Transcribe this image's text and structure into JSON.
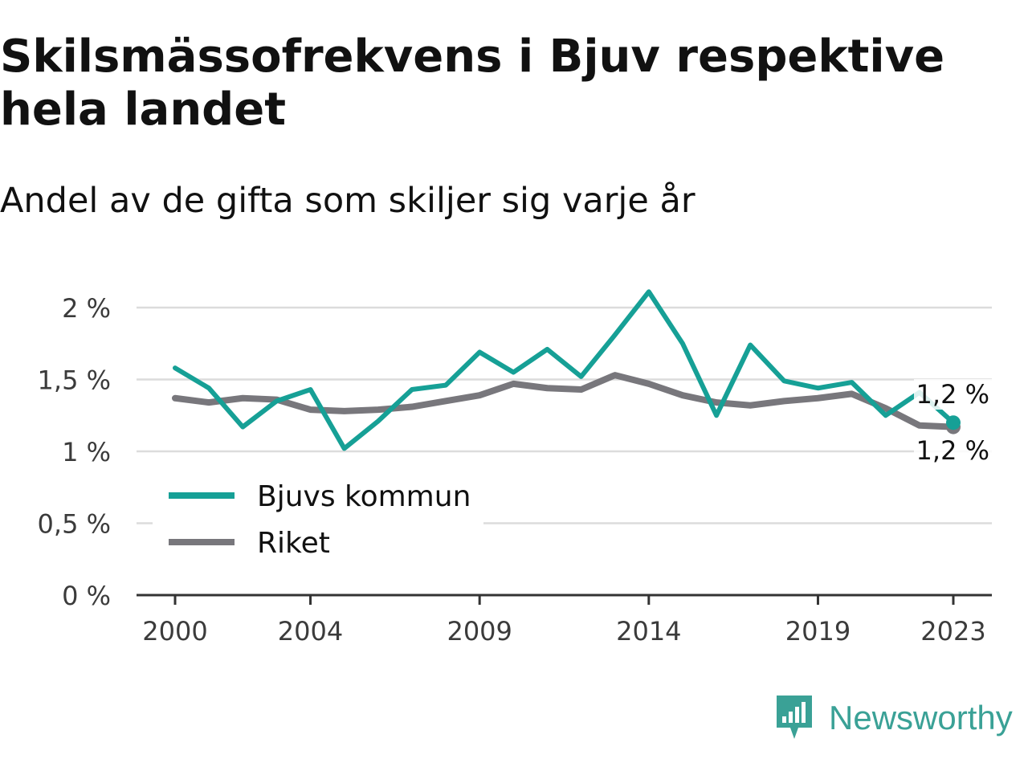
{
  "header": {
    "title": "Skilsmässofrekvens i Bjuv respektive hela landet",
    "subtitle": "Andel av de gifta som skiljer sig varje år"
  },
  "brand": {
    "name": "Newsworthy",
    "icon": "newsworthy-logo-icon",
    "color": "#3aa196"
  },
  "chart_data": {
    "type": "line",
    "title": "Skilsmässofrekvens i Bjuv respektive hela landet",
    "subtitle": "Andel av de gifta som skiljer sig varje år",
    "xlabel": "",
    "ylabel": "",
    "x": [
      2000,
      2001,
      2002,
      2003,
      2004,
      2005,
      2006,
      2007,
      2008,
      2009,
      2010,
      2011,
      2012,
      2013,
      2014,
      2015,
      2016,
      2017,
      2018,
      2019,
      2020,
      2021,
      2022,
      2023
    ],
    "x_ticks": [
      2000,
      2004,
      2009,
      2014,
      2019,
      2023
    ],
    "x_tick_labels": [
      "2000",
      "2004",
      "2009",
      "2014",
      "2019",
      "2023"
    ],
    "ylim": [
      0,
      2.1
    ],
    "y_ticks": [
      0,
      0.5,
      1,
      1.5,
      2
    ],
    "y_tick_labels": [
      "0 %",
      "0,5 %",
      "1 %",
      "1,5 %",
      "2 %"
    ],
    "grid": true,
    "legend_position": "bottom-left",
    "series": [
      {
        "name": "Bjuvs kommun",
        "color": "#16a096",
        "values": [
          1.58,
          1.44,
          1.17,
          1.35,
          1.43,
          1.02,
          1.21,
          1.43,
          1.46,
          1.69,
          1.55,
          1.71,
          1.52,
          1.81,
          2.11,
          1.75,
          1.25,
          1.74,
          1.49,
          1.44,
          1.48,
          1.25,
          1.41,
          1.2
        ],
        "end_label": "1,2 %"
      },
      {
        "name": "Riket",
        "color": "#78777c",
        "values": [
          1.37,
          1.34,
          1.37,
          1.36,
          1.29,
          1.28,
          1.29,
          1.31,
          1.35,
          1.39,
          1.47,
          1.44,
          1.43,
          1.53,
          1.47,
          1.39,
          1.34,
          1.32,
          1.35,
          1.37,
          1.4,
          1.3,
          1.18,
          1.17
        ],
        "end_label": "1,2 %"
      }
    ]
  }
}
